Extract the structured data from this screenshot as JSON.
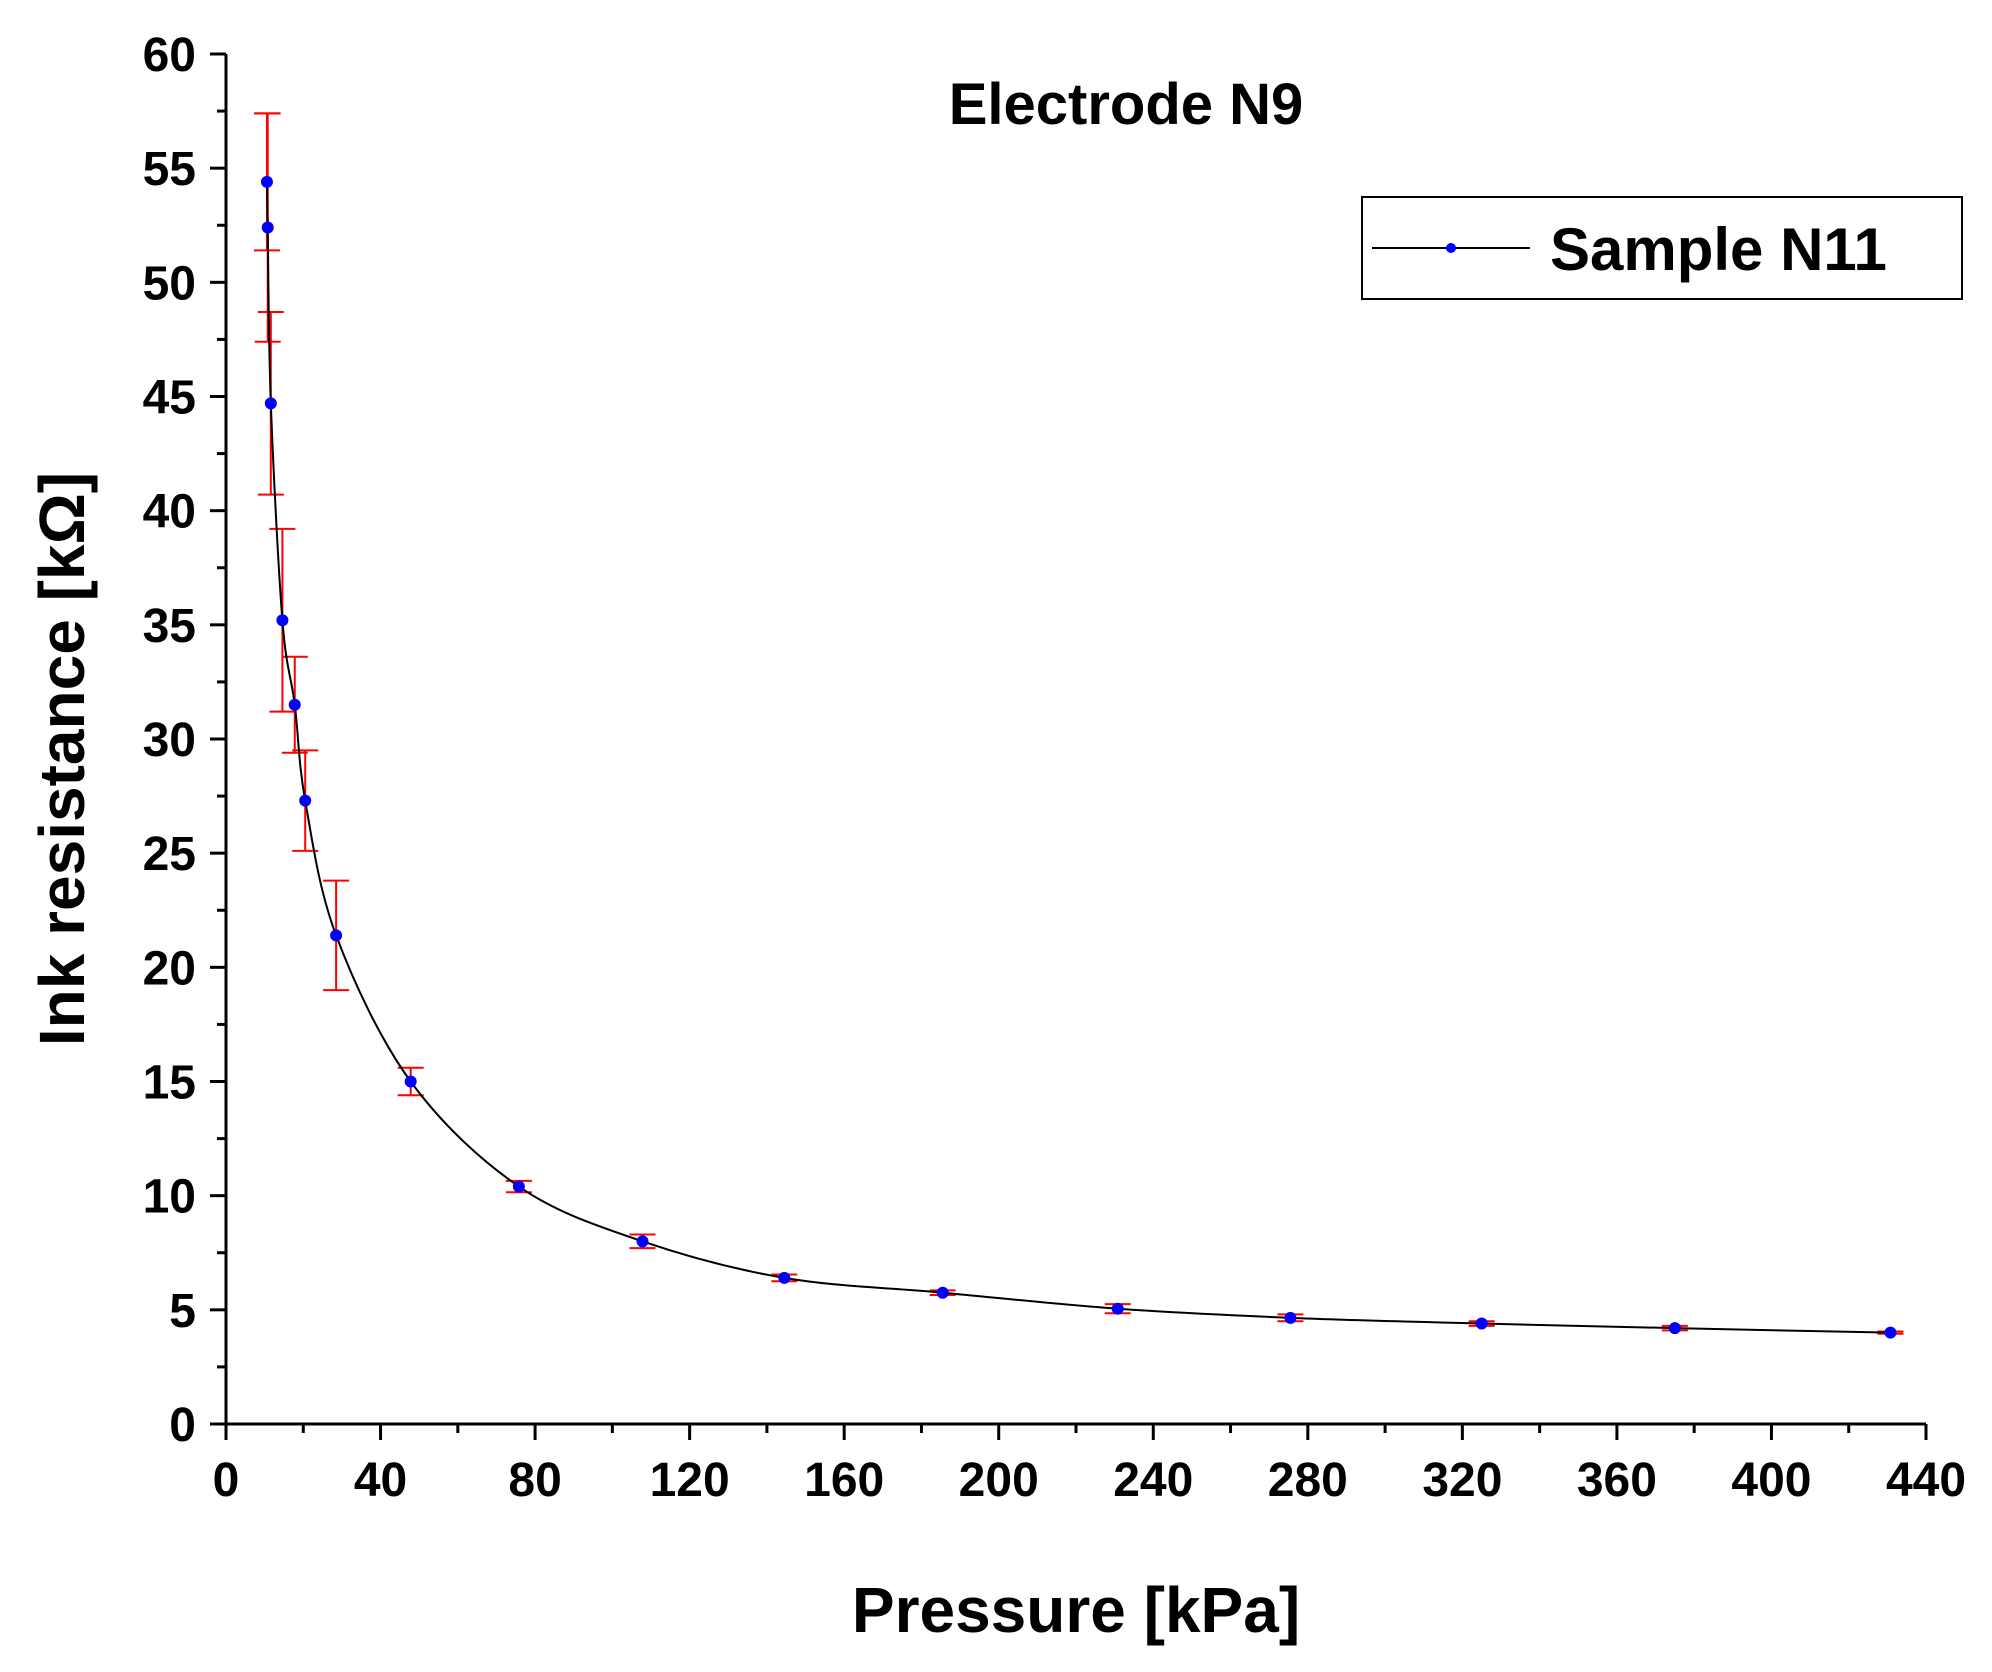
{
  "chart_data": {
    "type": "line",
    "title": "Electrode N9",
    "xlabel": "Pressure [kPa]",
    "ylabel": "Ink resistance [kΩ]",
    "xlim": [
      0,
      440
    ],
    "ylim": [
      0,
      60
    ],
    "xticks": [
      0,
      40,
      80,
      120,
      160,
      200,
      240,
      280,
      320,
      360,
      400,
      440
    ],
    "yticks": [
      0,
      5,
      10,
      15,
      20,
      25,
      30,
      35,
      40,
      45,
      50,
      55,
      60
    ],
    "grid": false,
    "legend_position": "top-right",
    "series": [
      {
        "name": "Sample N11",
        "line_color": "#000000",
        "marker_color": "#0000ff",
        "error_color": "#ff0000",
        "points": [
          {
            "x": 10.6,
            "y": 54.4,
            "err": 3.0
          },
          {
            "x": 10.8,
            "y": 52.4,
            "err": 5.0
          },
          {
            "x": 11.6,
            "y": 44.7,
            "err": 4.0
          },
          {
            "x": 14.6,
            "y": 35.2,
            "err": 4.0
          },
          {
            "x": 17.8,
            "y": 31.5,
            "err": 2.1
          },
          {
            "x": 20.5,
            "y": 27.3,
            "err": 2.2
          },
          {
            "x": 28.5,
            "y": 21.4,
            "err": 2.4
          },
          {
            "x": 47.8,
            "y": 15.0,
            "err": 0.6
          },
          {
            "x": 75.8,
            "y": 10.4,
            "err": 0.25
          },
          {
            "x": 107.8,
            "y": 8.0,
            "err": 0.3
          },
          {
            "x": 144.5,
            "y": 6.4,
            "err": 0.15
          },
          {
            "x": 185.5,
            "y": 5.75,
            "err": 0.1
          },
          {
            "x": 230.8,
            "y": 5.05,
            "err": 0.2
          },
          {
            "x": 275.5,
            "y": 4.65,
            "err": 0.15
          },
          {
            "x": 325.0,
            "y": 4.4,
            "err": 0.1
          },
          {
            "x": 375.0,
            "y": 4.2,
            "err": 0.1
          },
          {
            "x": 430.8,
            "y": 4.0,
            "err": 0.05
          }
        ]
      }
    ]
  }
}
